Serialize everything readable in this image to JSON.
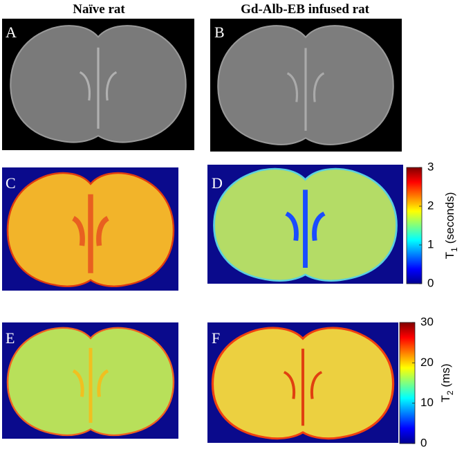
{
  "columns": [
    "Naïve rat",
    "Gd-Alb-EB infused rat"
  ],
  "panels": [
    "A",
    "B",
    "C",
    "D",
    "E",
    "F"
  ],
  "colorbars": [
    {
      "label": "T",
      "subscript": "1",
      "unit": "(seconds)",
      "lim": [
        0,
        3
      ],
      "ticks": [
        0,
        1,
        2,
        3
      ]
    },
    {
      "label": "T",
      "subscript": "2",
      "unit": "(ms)",
      "lim": [
        0,
        30
      ],
      "ticks": [
        0,
        10,
        20,
        30
      ]
    }
  ]
}
